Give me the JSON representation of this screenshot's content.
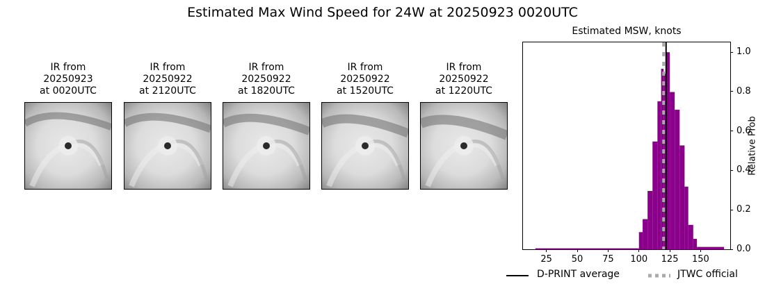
{
  "figure": {
    "suptitle": "Estimated Max Wind Speed for 24W at 20250923 0020UTC"
  },
  "ir_panels": [
    {
      "title": "IR from\n20250923\nat 0020UTC"
    },
    {
      "title": "IR from\n20250922\nat 2120UTC"
    },
    {
      "title": "IR from\n20250922\nat 1820UTC"
    },
    {
      "title": "IR from\n20250922\nat 1520UTC"
    },
    {
      "title": "IR from\n20250922\nat 1220UTC"
    }
  ],
  "chart_data": {
    "type": "bar",
    "title": "Estimated MSW, knots",
    "xlabel": "",
    "ylabel": "Relative Prob",
    "ylabel_position": "right",
    "xlim": [
      6,
      174
    ],
    "ylim": [
      0,
      1.05
    ],
    "xticks": [
      25,
      50,
      75,
      100,
      125,
      150
    ],
    "yticks": [
      0.0,
      0.2,
      0.4,
      0.6,
      0.8,
      1.0
    ],
    "ytick_labels": [
      "0.0",
      "0.2",
      "0.4",
      "0.6",
      "0.8",
      "1.0"
    ],
    "grid": false,
    "bar_color": "#8b008b",
    "bins": [
      {
        "x0": 16,
        "x1": 100,
        "value": 0.005
      },
      {
        "x0": 100,
        "x1": 103,
        "value": 0.087
      },
      {
        "x0": 103,
        "x1": 107,
        "value": 0.153
      },
      {
        "x0": 107,
        "x1": 111,
        "value": 0.296
      },
      {
        "x0": 111,
        "x1": 115,
        "value": 0.547
      },
      {
        "x0": 115,
        "x1": 118,
        "value": 0.751
      },
      {
        "x0": 118,
        "x1": 120,
        "value": 0.916
      },
      {
        "x0": 120,
        "x1": 122,
        "value": 0.891
      },
      {
        "x0": 122,
        "x1": 125,
        "value": 1.0
      },
      {
        "x0": 125,
        "x1": 129,
        "value": 0.798
      },
      {
        "x0": 129,
        "x1": 133,
        "value": 0.708
      },
      {
        "x0": 133,
        "x1": 137,
        "value": 0.527
      },
      {
        "x0": 137,
        "x1": 140,
        "value": 0.318
      },
      {
        "x0": 140,
        "x1": 144,
        "value": 0.124
      },
      {
        "x0": 144,
        "x1": 147,
        "value": 0.053
      },
      {
        "x0": 147,
        "x1": 169,
        "value": 0.012
      }
    ],
    "vlines": [
      {
        "name": "D-PRINT average",
        "x": 122,
        "color": "#000000",
        "style": "solid"
      },
      {
        "name": "JTWC official",
        "x": 120,
        "color": "#aaaaaa",
        "style": "dotted"
      }
    ],
    "legend": {
      "position": "bottom",
      "entries": [
        "D-PRINT average",
        "JTWC official"
      ]
    }
  }
}
